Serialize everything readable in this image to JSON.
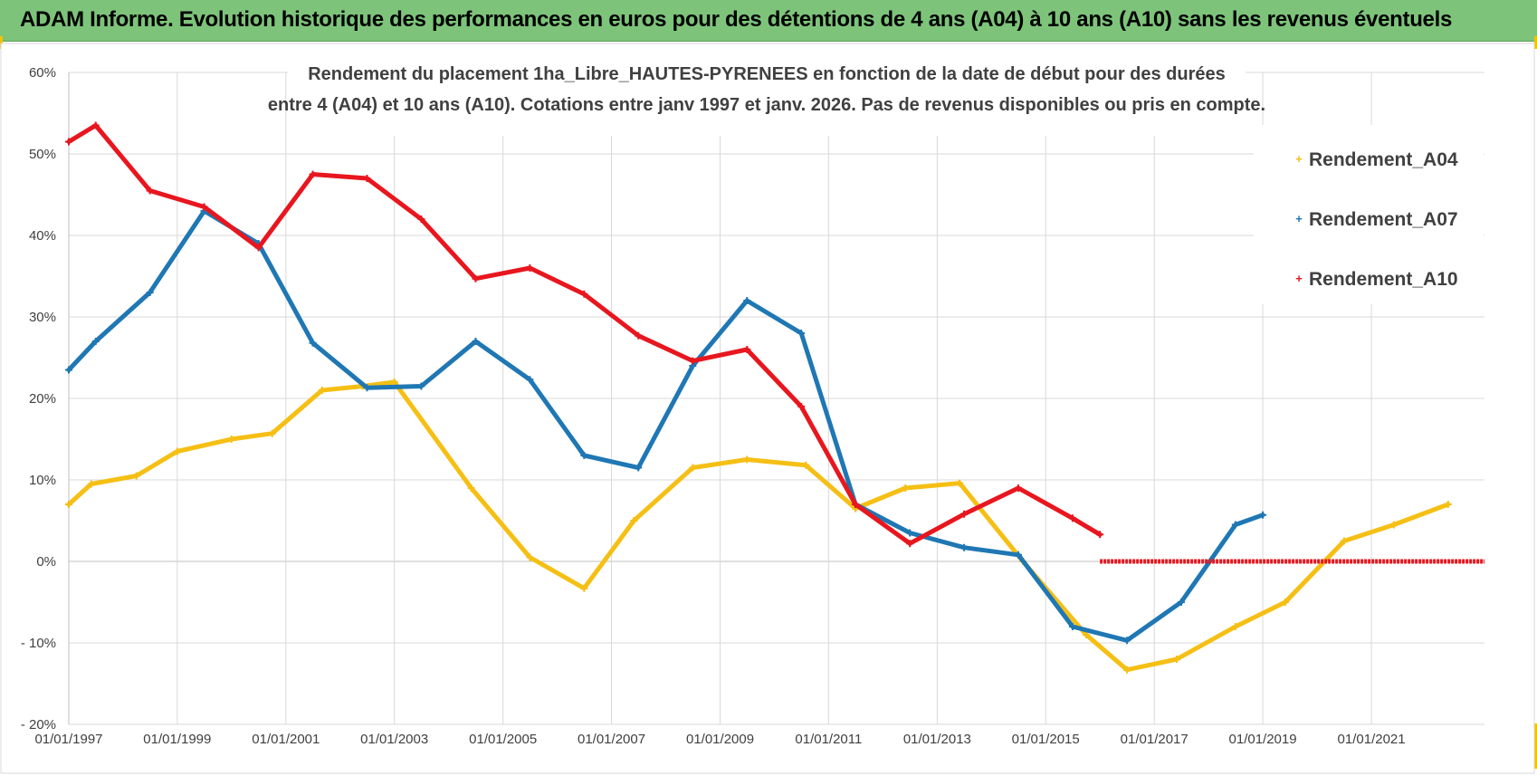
{
  "header": {
    "title": "ADAM Informe. Evolution historique des performances en euros pour des détentions de 4 ans (A04) à 10 ans (A10) sans les revenus éventuels"
  },
  "chart_data": {
    "type": "line",
    "title_lines": [
      "Rendement du placement 1ha_Libre_HAUTES-PYRENEES en fonction de la date de début pour des durées",
      "entre 4 (A04) et 10 ans (A10).  Cotations entre janv 1997 et janv. 2026. Pas de revenus disponibles ou pris en compte."
    ],
    "x_ticks": [
      "01/01/1997",
      "01/01/1999",
      "01/01/2001",
      "01/01/2003",
      "01/01/2005",
      "01/01/2007",
      "01/01/2009",
      "01/01/2011",
      "01/01/2013",
      "01/01/2015",
      "01/01/2017",
      "01/01/2019",
      "01/01/2021"
    ],
    "y_ticks": [
      "60%",
      "50%",
      "40%",
      "30%",
      "20%",
      "10%",
      "0%",
      "- 10%",
      "- 20%"
    ],
    "xlim": [
      "1997-01-01",
      "2023-02-01"
    ],
    "ylim": [
      -20,
      60
    ],
    "grid": true,
    "legend_position": "top-right",
    "legend_marker": "+",
    "series": [
      {
        "name": "Rendement_A04",
        "color": "#f5bf14",
        "points": [
          [
            "1997-01-01",
            7
          ],
          [
            "1997-06-01",
            9.5
          ],
          [
            "1998-04-01",
            10.5
          ],
          [
            "1999-01-01",
            13.5
          ],
          [
            "2000-01-01",
            15
          ],
          [
            "2000-10-01",
            15.7
          ],
          [
            "2001-09-01",
            21
          ],
          [
            "2002-06-01",
            21.5
          ],
          [
            "2003-01-01",
            22
          ],
          [
            "2004-06-01",
            9
          ],
          [
            "2005-07-01",
            0.5
          ],
          [
            "2006-07-01",
            -3.3
          ],
          [
            "2007-06-01",
            5
          ],
          [
            "2008-07-01",
            11.5
          ],
          [
            "2009-07-01",
            12.5
          ],
          [
            "2010-08-01",
            11.8
          ],
          [
            "2011-07-01",
            6.5
          ],
          [
            "2012-06-01",
            9
          ],
          [
            "2013-06-01",
            9.6
          ],
          [
            "2014-08-01",
            0
          ],
          [
            "2015-10-01",
            -9
          ],
          [
            "2016-07-01",
            -13.3
          ],
          [
            "2017-06-01",
            -12
          ],
          [
            "2018-07-01",
            -8
          ],
          [
            "2019-06-01",
            -5
          ],
          [
            "2020-07-01",
            2.5
          ],
          [
            "2021-06-01",
            4.5
          ],
          [
            "2022-06-01",
            7
          ]
        ]
      },
      {
        "name": "Rendement_A07",
        "color": "#1f77b4",
        "points": [
          [
            "1997-01-01",
            23.5
          ],
          [
            "1997-07-01",
            27
          ],
          [
            "1998-07-01",
            33
          ],
          [
            "1999-07-01",
            43
          ],
          [
            "2000-07-01",
            39
          ],
          [
            "2001-07-01",
            26.8
          ],
          [
            "2002-07-01",
            21.3
          ],
          [
            "2003-07-01",
            21.5
          ],
          [
            "2004-07-01",
            27
          ],
          [
            "2005-07-01",
            22.3
          ],
          [
            "2006-07-01",
            13
          ],
          [
            "2007-07-01",
            11.5
          ],
          [
            "2008-07-01",
            24
          ],
          [
            "2009-07-01",
            32
          ],
          [
            "2010-07-01",
            28
          ],
          [
            "2011-07-01",
            7
          ],
          [
            "2012-07-01",
            3.5
          ],
          [
            "2013-07-01",
            1.7
          ],
          [
            "2014-07-01",
            0.8
          ],
          [
            "2015-07-01",
            -8
          ],
          [
            "2016-07-01",
            -9.7
          ],
          [
            "2017-07-01",
            -5
          ],
          [
            "2018-07-01",
            4.5
          ],
          [
            "2019-01-01",
            5.7
          ]
        ]
      },
      {
        "name": "Rendement_A10",
        "color": "#e8161e",
        "points": [
          [
            "1997-01-01",
            51.5
          ],
          [
            "1997-07-01",
            53.5
          ],
          [
            "1998-07-01",
            45.5
          ],
          [
            "1999-07-01",
            43.5
          ],
          [
            "2000-07-01",
            38.5
          ],
          [
            "2001-07-01",
            47.5
          ],
          [
            "2002-07-01",
            47
          ],
          [
            "2003-07-01",
            42
          ],
          [
            "2004-07-01",
            34.7
          ],
          [
            "2005-07-01",
            36
          ],
          [
            "2006-07-01",
            32.8
          ],
          [
            "2007-07-01",
            27.7
          ],
          [
            "2008-07-01",
            24.6
          ],
          [
            "2009-07-01",
            26
          ],
          [
            "2010-07-01",
            19
          ],
          [
            "2011-07-01",
            7
          ],
          [
            "2012-07-01",
            2.2
          ],
          [
            "2013-07-01",
            5.8
          ],
          [
            "2014-07-01",
            9
          ],
          [
            "2015-07-01",
            5.3
          ],
          [
            "2016-01-01",
            3.3
          ]
        ],
        "zero_segment": [
          "2016-01-01",
          "2023-02-01"
        ]
      }
    ]
  }
}
